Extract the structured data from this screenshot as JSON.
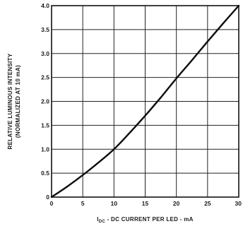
{
  "chart_data": {
    "type": "line",
    "x": [
      0,
      2.5,
      5,
      7.5,
      10,
      12.5,
      15,
      17.5,
      20,
      22.5,
      25,
      27.5,
      30
    ],
    "series": [
      {
        "values": [
          0,
          0.22,
          0.46,
          0.72,
          1.0,
          1.34,
          1.7,
          2.08,
          2.48,
          2.86,
          3.25,
          3.63,
          4.0
        ]
      }
    ],
    "xlim": [
      0,
      30
    ],
    "ylim": [
      0,
      4.0
    ],
    "x_ticks": [
      "0",
      "5",
      "10",
      "15",
      "20",
      "25",
      "30"
    ],
    "y_ticks": [
      "0",
      "0.5",
      "1.0",
      "1.5",
      "2.0",
      "2.5",
      "3.0",
      "3.5",
      "4.0"
    ],
    "xlabel": "I₉ₐ - DC CURRENT PER LED - mA",
    "xlabel_sub": "DC",
    "xlabel_main": "I",
    "xlabel_rest": " - DC CURRENT PER LED - mA",
    "ylabel_line1": "RELATIVE LUMINOUS INTENSITY",
    "ylabel_line2": "(NORMALIZED AT 10 mA)",
    "grid": "on",
    "legend": "none"
  }
}
